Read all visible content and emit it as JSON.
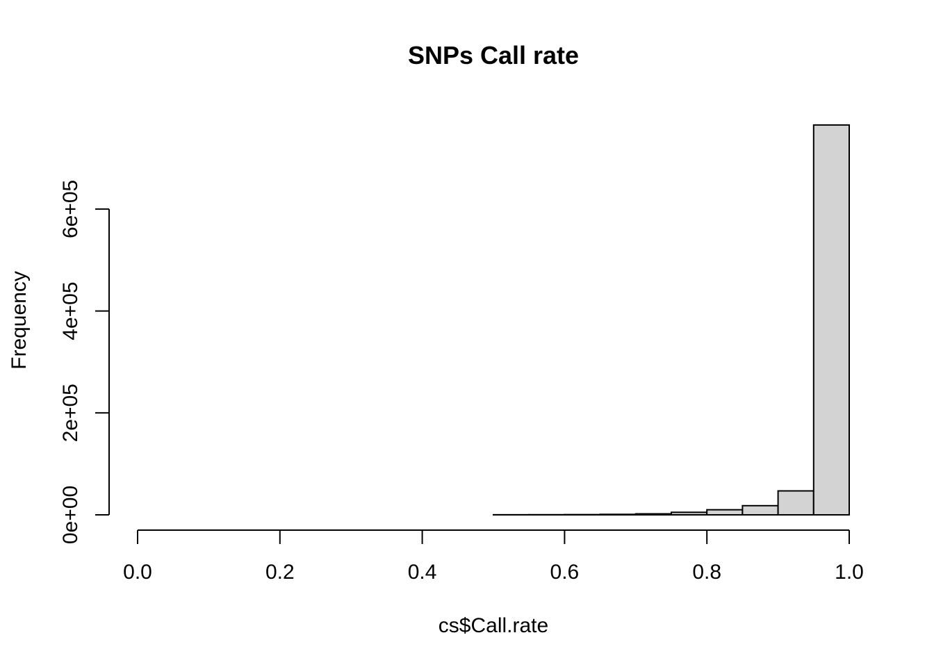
{
  "chart_data": {
    "type": "bar",
    "title": "SNPs Call rate",
    "xlabel": "cs$Call.rate",
    "ylabel": "Frequency",
    "xlim": [
      0,
      1
    ],
    "ylim": [
      0,
      765000
    ],
    "x_ticks": [
      "0.0",
      "0.2",
      "0.4",
      "0.6",
      "0.8",
      "1.0"
    ],
    "y_ticks": [
      "0e+00",
      "2e+05",
      "4e+05",
      "6e+05"
    ],
    "bins": [
      {
        "start": 0.0,
        "end": 0.05,
        "value": 0
      },
      {
        "start": 0.05,
        "end": 0.1,
        "value": 0
      },
      {
        "start": 0.1,
        "end": 0.15,
        "value": 0
      },
      {
        "start": 0.15,
        "end": 0.2,
        "value": 0
      },
      {
        "start": 0.2,
        "end": 0.25,
        "value": 0
      },
      {
        "start": 0.25,
        "end": 0.3,
        "value": 0
      },
      {
        "start": 0.3,
        "end": 0.35,
        "value": 0
      },
      {
        "start": 0.35,
        "end": 0.4,
        "value": 0
      },
      {
        "start": 0.4,
        "end": 0.45,
        "value": 0
      },
      {
        "start": 0.45,
        "end": 0.5,
        "value": 0
      },
      {
        "start": 0.5,
        "end": 0.55,
        "value": 200
      },
      {
        "start": 0.55,
        "end": 0.6,
        "value": 300
      },
      {
        "start": 0.6,
        "end": 0.65,
        "value": 500
      },
      {
        "start": 0.65,
        "end": 0.7,
        "value": 1000
      },
      {
        "start": 0.7,
        "end": 0.75,
        "value": 2000
      },
      {
        "start": 0.75,
        "end": 0.8,
        "value": 5000
      },
      {
        "start": 0.8,
        "end": 0.85,
        "value": 10000
      },
      {
        "start": 0.85,
        "end": 0.9,
        "value": 18000
      },
      {
        "start": 0.9,
        "end": 0.95,
        "value": 47000
      },
      {
        "start": 0.95,
        "end": 1.0,
        "value": 765000
      }
    ],
    "bar_fill": "#d3d3d3",
    "bar_stroke": "#000000",
    "grid": false
  }
}
